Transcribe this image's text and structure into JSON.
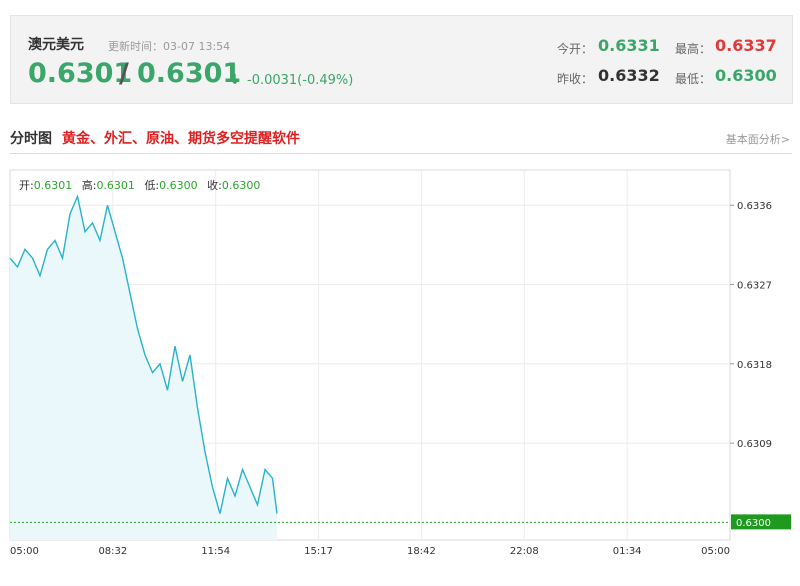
{
  "header": {
    "pair_name": "澳元美元",
    "update_time": "更新时间：03-07 13:54",
    "bid": "0.6301",
    "separator": "/",
    "ask": "0.6301",
    "arrow": "↓",
    "change": "-0.0031(-0.49%)",
    "open_label": "今开：",
    "open_value": "0.6331",
    "high_label": "最高：",
    "high_value": "0.6337",
    "prev_close_label": "昨收：",
    "prev_close_value": "0.6332",
    "low_label": "最低：",
    "low_value": "0.6300"
  },
  "section": {
    "title": "分时图",
    "ad_text": "黄金、外汇、原油、期货多空提醒软件",
    "fundamental_link": "基本面分析>"
  },
  "ohlc": {
    "open_label": "开:",
    "open": "0.6301",
    "high_label": "高:",
    "high": "0.6301",
    "low_label": "低:",
    "low": "0.6300",
    "close_label": "收:",
    "close": "0.6300"
  },
  "colors": {
    "up": "#e03a3a",
    "down": "#3aa66a",
    "line": "#27b3c9",
    "area": "#eaf7fb",
    "last_price_tag": "#1f9a1f"
  },
  "chart_data": {
    "type": "area",
    "x_ticks": [
      "05:00",
      "08:32",
      "11:54",
      "15:17",
      "18:42",
      "22:08",
      "01:34",
      "05:00"
    ],
    "y_ticks": [
      "0.6336",
      "0.6327",
      "0.6318",
      "0.6309",
      "0.6300"
    ],
    "ylim": [
      0.6298,
      0.634
    ],
    "last_price": "0.6300",
    "grid": true,
    "x": [
      "05:00",
      "05:15",
      "05:30",
      "05:45",
      "06:00",
      "06:15",
      "06:30",
      "06:45",
      "07:00",
      "07:15",
      "07:30",
      "07:45",
      "08:00",
      "08:15",
      "08:30",
      "08:45",
      "09:00",
      "09:15",
      "09:30",
      "09:45",
      "10:00",
      "10:15",
      "10:30",
      "10:45",
      "11:00",
      "11:15",
      "11:30",
      "11:45",
      "12:00",
      "12:15",
      "12:30",
      "12:45",
      "13:00",
      "13:15",
      "13:30",
      "13:45",
      "13:54"
    ],
    "values": [
      0.633,
      0.6329,
      0.6331,
      0.633,
      0.6328,
      0.6331,
      0.6332,
      0.633,
      0.6335,
      0.6337,
      0.6333,
      0.6334,
      0.6332,
      0.6336,
      0.6333,
      0.633,
      0.6326,
      0.6322,
      0.6319,
      0.6317,
      0.6318,
      0.6315,
      0.632,
      0.6316,
      0.6319,
      0.6313,
      0.6308,
      0.6304,
      0.6301,
      0.6305,
      0.6303,
      0.6306,
      0.6304,
      0.6302,
      0.6306,
      0.6305,
      0.6301
    ]
  }
}
